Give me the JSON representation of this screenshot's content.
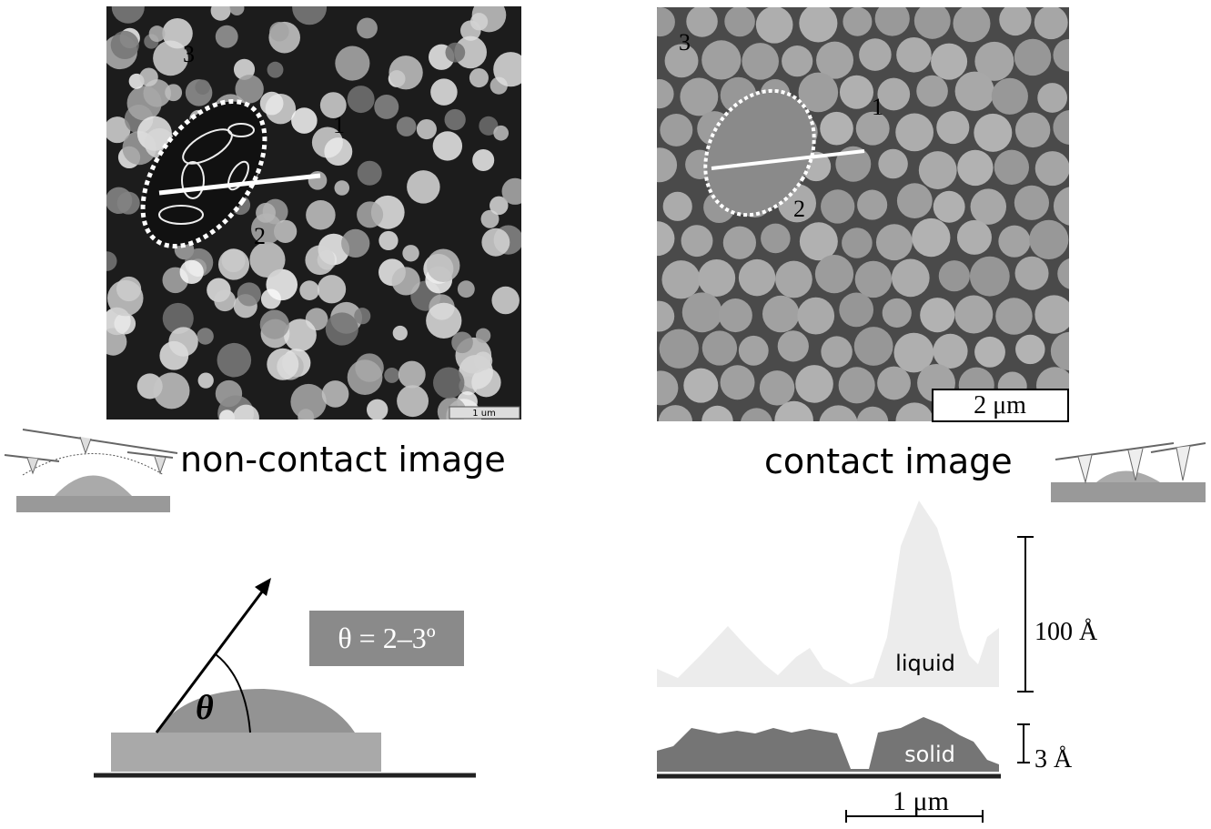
{
  "left_panel": {
    "labels": [
      "3",
      "1",
      "2"
    ],
    "scale_bar": "1 um",
    "caption": "non-contact image"
  },
  "right_panel": {
    "labels": [
      "3",
      "1",
      "2"
    ],
    "scale_bar": "2 μm",
    "caption": "contact image"
  },
  "contact_angle": {
    "value_label": "θ = 2–3º",
    "angle_symbol": "θ"
  },
  "profile": {
    "liquid_label": "liquid",
    "liquid_scale": "100 Å",
    "solid_label": "solid",
    "solid_scale": "3 Å",
    "x_scale": "1 μm"
  }
}
